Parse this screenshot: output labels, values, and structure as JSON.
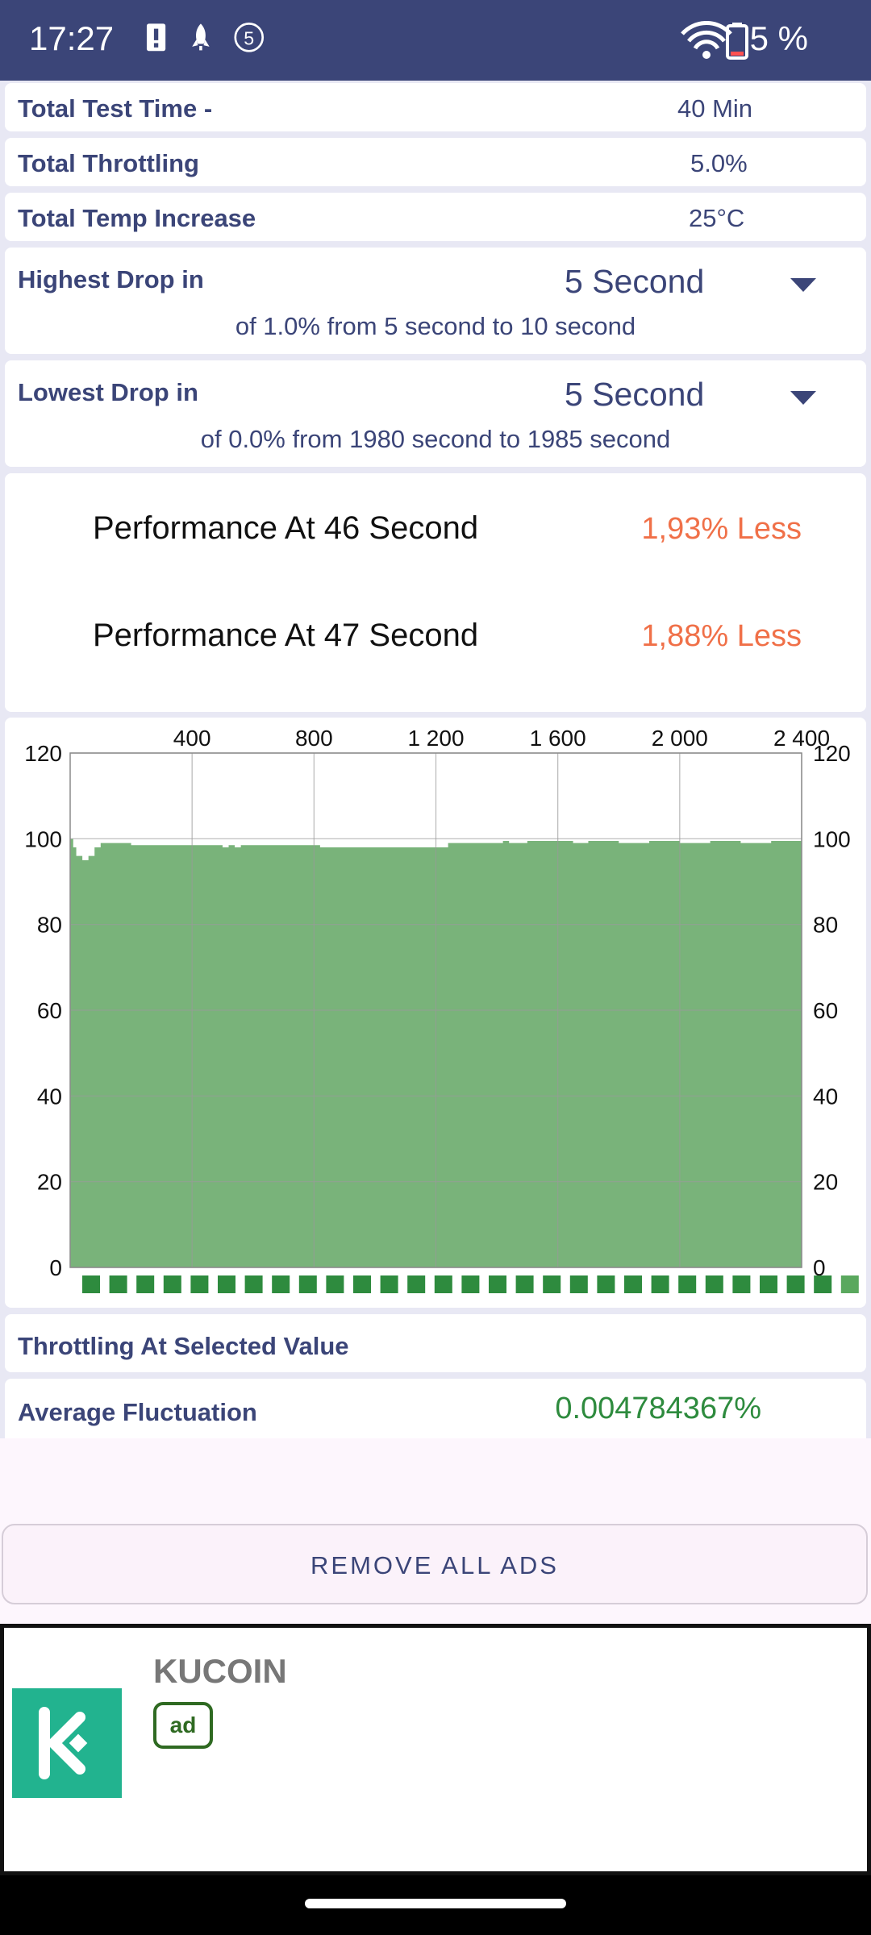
{
  "status_bar": {
    "time": "17:27",
    "notif_count": "5",
    "battery_text": "5 %"
  },
  "summary": {
    "total_test_time": {
      "label": "Total Test Time -",
      "value": "40 Min"
    },
    "total_throttling": {
      "label": "Total Throttling",
      "value": "5.0%"
    },
    "total_temp_increase": {
      "label": "Total Temp Increase",
      "value": "25°C"
    }
  },
  "highest_drop": {
    "label": "Highest Drop in",
    "selected": "5 Second",
    "detail": "of 1.0% from 5 second to  10 second"
  },
  "lowest_drop": {
    "label": "Lowest Drop in",
    "selected": "5 Second",
    "detail": "of 0.0% from 1980 second to  1985 second"
  },
  "performance": [
    {
      "label": "Performance At 46 Second",
      "value": "1,93% Less"
    },
    {
      "label": "Performance At 47 Second",
      "value": "1,88% Less"
    }
  ],
  "chart_data": {
    "type": "area",
    "x_ticks": [
      "400",
      "800",
      "1 200",
      "1 600",
      "2 000",
      "2 400"
    ],
    "y_ticks": [
      "0",
      "20",
      "40",
      "60",
      "80",
      "100",
      "120"
    ],
    "xlim": [
      0,
      2400
    ],
    "ylim": [
      0,
      120
    ],
    "grid": true,
    "fill_color": "#79b37a",
    "x": [
      0,
      10,
      20,
      40,
      60,
      80,
      100,
      150,
      200,
      300,
      400,
      480,
      500,
      520,
      540,
      560,
      600,
      800,
      820,
      900,
      1000,
      1200,
      1240,
      1300,
      1400,
      1420,
      1440,
      1500,
      1600,
      1650,
      1700,
      1800,
      1900,
      2000,
      2100,
      2200,
      2300,
      2400
    ],
    "y": [
      100,
      98,
      96,
      95,
      96,
      98,
      99,
      99,
      98.5,
      98.5,
      98.5,
      98.5,
      98,
      98.5,
      98,
      98.5,
      98.5,
      98.5,
      98,
      98,
      98,
      98,
      99,
      99,
      99,
      99.5,
      99,
      99.5,
      99.5,
      99,
      99.5,
      99,
      99.5,
      99,
      99.5,
      99,
      99.5,
      99.5
    ]
  },
  "throttling_selected": {
    "label": "Throttling At Selected Value"
  },
  "average_fluctuation": {
    "label": "Average Fluctuation",
    "value": "0.004784367%"
  },
  "remove_ads_label": "REMOVE ALL ADS",
  "ad": {
    "title": "KUCOIN",
    "badge": "ad",
    "logo_icon": "kucoin-logo-icon"
  }
}
